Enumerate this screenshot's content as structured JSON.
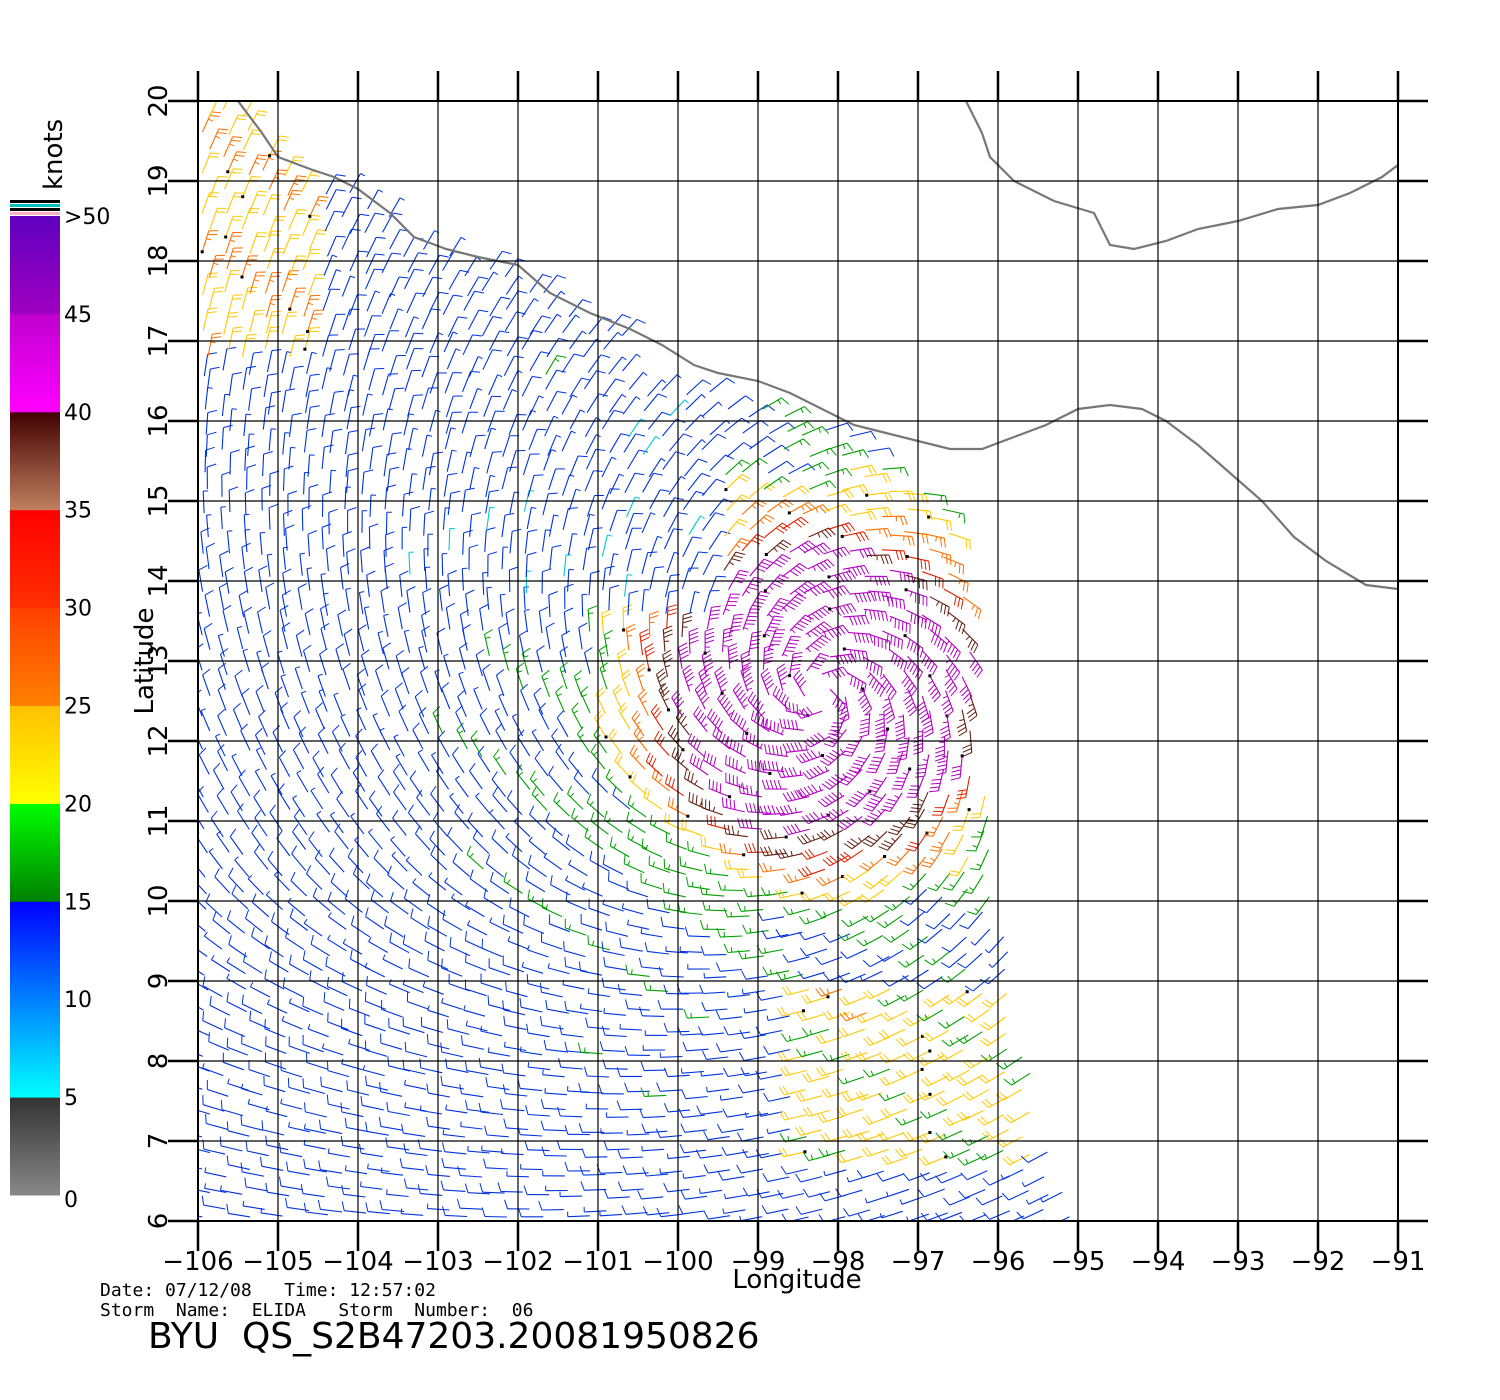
{
  "chart_data": {
    "type": "wind-barb-map",
    "xlabel": "Longitude",
    "ylabel": "Latitude",
    "xlim": [
      -106,
      -91
    ],
    "ylim": [
      6,
      20
    ],
    "x_ticks": [
      -106,
      -105,
      -104,
      -103,
      -102,
      -101,
      -100,
      -99,
      -98,
      -97,
      -96,
      -95,
      -94,
      -93,
      -92,
      -91
    ],
    "y_ticks": [
      6,
      7,
      8,
      9,
      10,
      11,
      12,
      13,
      14,
      15,
      16,
      17,
      18,
      19,
      20
    ],
    "x_tick_labels": [
      "−106",
      "−105",
      "−104",
      "−103",
      "−102",
      "−101",
      "−100",
      "−99",
      "−98",
      "−97",
      "−96",
      "−95",
      "−94",
      "−93",
      "−92",
      "−91"
    ],
    "y_tick_labels": [
      "6",
      "7",
      "8",
      "9",
      "10",
      "11",
      "12",
      "13",
      "14",
      "15",
      "16",
      "17",
      "18",
      "19",
      "20"
    ],
    "grid": true,
    "legend": {
      "title": "knots",
      "placement": "left",
      "labels": [
        "0",
        "5",
        "10",
        "15",
        "20",
        "25",
        "30",
        "35",
        "40",
        "45",
        ">50"
      ],
      "bands": [
        {
          "from": 0,
          "to": 5,
          "colors": [
            "#888888",
            "#333333"
          ]
        },
        {
          "from": 5,
          "to": 10,
          "colors": [
            "#00ffff",
            "#0080ff"
          ]
        },
        {
          "from": 10,
          "to": 15,
          "colors": [
            "#0080ff",
            "#0000ff"
          ]
        },
        {
          "from": 15,
          "to": 20,
          "colors": [
            "#008000",
            "#00ff00"
          ]
        },
        {
          "from": 20,
          "to": 25,
          "colors": [
            "#ffff00",
            "#ffc000"
          ]
        },
        {
          "from": 25,
          "to": 30,
          "colors": [
            "#ff8000",
            "#ff4000"
          ]
        },
        {
          "from": 30,
          "to": 35,
          "colors": [
            "#ff3000",
            "#ff0000"
          ]
        },
        {
          "from": 35,
          "to": 40,
          "colors": [
            "#c08060",
            "#400000"
          ]
        },
        {
          "from": 40,
          "to": 45,
          "colors": [
            "#ff00ff",
            "#c000d0"
          ]
        },
        {
          "from": 45,
          "to": 50,
          "colors": [
            "#a000c0",
            "#6000c0"
          ]
        }
      ],
      "top_stripes": [
        "#000000",
        "#00c0c0",
        "#000000",
        "#ffb0c0"
      ]
    },
    "storm_center": {
      "lon": -98.2,
      "lat": 12.6
    },
    "swath": [
      [
        -101.0,
        20.0
      ],
      [
        -100.6,
        16.6
      ],
      [
        -98.0,
        16.0
      ],
      [
        -96.5,
        14.8
      ],
      [
        -96.3,
        13.0
      ],
      [
        -96.1,
        11.0
      ],
      [
        -95.8,
        9.0
      ],
      [
        -95.4,
        7.0
      ],
      [
        -95.0,
        6.0
      ],
      [
        -106.0,
        6.0
      ],
      [
        -106.0,
        20.0
      ]
    ],
    "coastline": [
      [
        -105.5,
        20.0
      ],
      [
        -105.2,
        19.6
      ],
      [
        -105.0,
        19.3
      ],
      [
        -104.6,
        19.15
      ],
      [
        -104.3,
        19.05
      ],
      [
        -104.0,
        18.9
      ],
      [
        -103.6,
        18.6
      ],
      [
        -103.3,
        18.3
      ],
      [
        -102.9,
        18.15
      ],
      [
        -102.5,
        18.05
      ],
      [
        -102.0,
        17.95
      ],
      [
        -101.6,
        17.6
      ],
      [
        -101.1,
        17.35
      ],
      [
        -100.6,
        17.15
      ],
      [
        -100.2,
        16.95
      ],
      [
        -99.8,
        16.7
      ],
      [
        -99.5,
        16.6
      ],
      [
        -99.0,
        16.5
      ],
      [
        -98.6,
        16.35
      ],
      [
        -98.2,
        16.15
      ],
      [
        -97.8,
        15.95
      ],
      [
        -97.4,
        15.85
      ],
      [
        -97.0,
        15.75
      ],
      [
        -96.6,
        15.65
      ],
      [
        -96.2,
        15.65
      ],
      [
        -95.8,
        15.8
      ],
      [
        -95.4,
        15.95
      ],
      [
        -95.0,
        16.15
      ],
      [
        -94.6,
        16.2
      ],
      [
        -94.2,
        16.15
      ],
      [
        -93.9,
        16.0
      ],
      [
        -93.5,
        15.7
      ],
      [
        -93.1,
        15.35
      ],
      [
        -92.7,
        15.0
      ],
      [
        -92.3,
        14.55
      ],
      [
        -91.9,
        14.25
      ],
      [
        -91.4,
        13.95
      ],
      [
        -91.0,
        13.9
      ]
    ],
    "coastline_gulf": [
      [
        -96.4,
        20.0
      ],
      [
        -96.2,
        19.6
      ],
      [
        -96.1,
        19.3
      ],
      [
        -95.8,
        19.0
      ],
      [
        -95.3,
        18.75
      ],
      [
        -94.8,
        18.6
      ],
      [
        -94.6,
        18.2
      ],
      [
        -94.3,
        18.15
      ],
      [
        -93.9,
        18.25
      ],
      [
        -93.5,
        18.4
      ],
      [
        -93.0,
        18.5
      ],
      [
        -92.5,
        18.65
      ],
      [
        -92.0,
        18.7
      ],
      [
        -91.6,
        18.85
      ],
      [
        -91.2,
        19.05
      ],
      [
        -91.0,
        19.2
      ]
    ],
    "wind_field": "cyclonic wind barbs; strongest winds (40-50 knots) near -99.5 lon, 12.5 lat"
  },
  "info": {
    "date_time": "Date: 07/12/08   Time: 12:57:02",
    "storm": "Storm  Name:  ELIDA   Storm  Number:  06",
    "product": "BYU  QS_S2B47203.20081950826"
  }
}
